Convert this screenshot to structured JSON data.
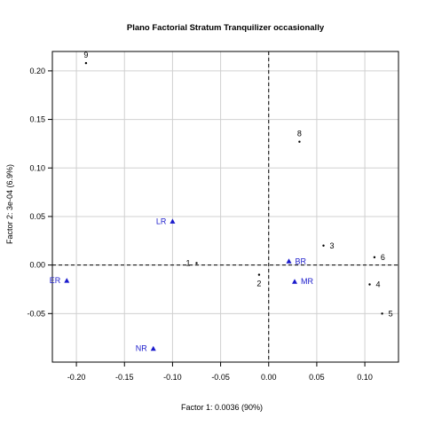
{
  "chart_data": {
    "type": "scatter",
    "title": "Plano Factorial Stratum Tranquilizer occasionally",
    "xlabel": "Factor 1: 0.0036 (90%)",
    "ylabel": "Factor 2: 3e-04 (6.9%)",
    "xlim": [
      -0.225,
      0.135
    ],
    "ylim": [
      -0.1,
      0.22
    ],
    "x_ticks": [
      -0.2,
      -0.15,
      -0.1,
      -0.05,
      0.0,
      0.05,
      0.1
    ],
    "x_tick_labels": [
      "-0.20",
      "-0.15",
      "-0.10",
      "-0.05",
      "0.00",
      "0.05",
      "0.10"
    ],
    "y_ticks": [
      -0.05,
      0.0,
      0.05,
      0.1,
      0.15,
      0.2
    ],
    "y_tick_labels": [
      "-0.05",
      "0.00",
      "0.05",
      "0.10",
      "0.15",
      "0.20"
    ],
    "grid": true,
    "reference_lines": {
      "x": 0,
      "y": 0
    },
    "series": [
      {
        "marker": "dot",
        "color": "#000000",
        "points": [
          {
            "label": "1",
            "x": -0.075,
            "y": 0.002,
            "label_side": "left"
          },
          {
            "label": "2",
            "x": -0.01,
            "y": -0.01,
            "label_side": "below"
          },
          {
            "label": "3",
            "x": 0.057,
            "y": 0.02,
            "label_side": "right"
          },
          {
            "label": "4",
            "x": 0.105,
            "y": -0.02,
            "label_side": "right"
          },
          {
            "label": "5",
            "x": 0.118,
            "y": -0.05,
            "label_side": "right"
          },
          {
            "label": "6",
            "x": 0.11,
            "y": 0.008,
            "label_side": "right"
          },
          {
            "label": "8",
            "x": 0.032,
            "y": 0.127,
            "label_side": "above"
          },
          {
            "label": "9",
            "x": -0.19,
            "y": 0.208,
            "label_side": "above"
          }
        ]
      },
      {
        "marker": "triangle",
        "color": "#1a1acc",
        "points": [
          {
            "label": "LR",
            "x": -0.1,
            "y": 0.045,
            "label_side": "left"
          },
          {
            "label": "BR",
            "x": 0.021,
            "y": 0.004,
            "label_side": "right"
          },
          {
            "label": "MR",
            "x": 0.027,
            "y": -0.017,
            "label_side": "right"
          },
          {
            "label": "NR",
            "x": -0.12,
            "y": -0.086,
            "label_side": "left"
          },
          {
            "label": "ER",
            "x": -0.21,
            "y": -0.016,
            "label_side": "left"
          }
        ]
      }
    ]
  }
}
